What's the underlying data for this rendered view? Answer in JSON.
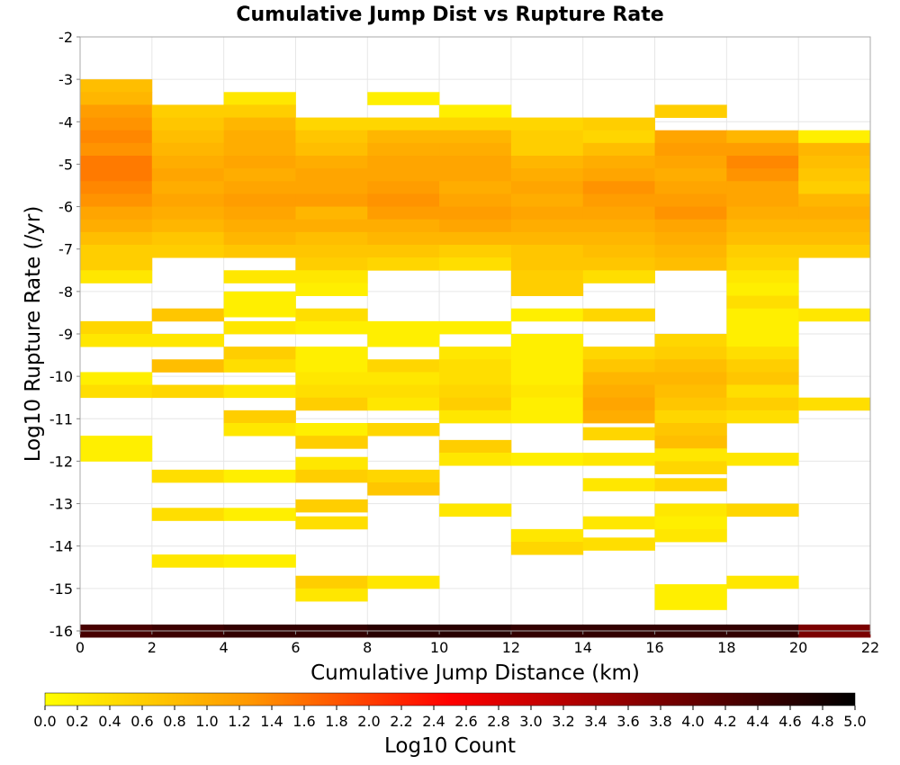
{
  "chart_data": {
    "type": "heatmap",
    "title": "Cumulative Jump Dist vs Rupture Rate",
    "xlabel": "Cumulative Jump Distance (km)",
    "ylabel": "Log10 Rupture Rate (/yr)",
    "xlim": [
      0,
      22
    ],
    "ylim": [
      -16,
      -2
    ],
    "x_ticks": [
      0,
      2,
      4,
      6,
      8,
      10,
      12,
      14,
      16,
      18,
      20,
      22
    ],
    "y_ticks": [
      -2,
      -3,
      -4,
      -5,
      -6,
      -7,
      -8,
      -9,
      -10,
      -11,
      -12,
      -13,
      -14,
      -15,
      -16
    ],
    "x_bin_width": 2,
    "y_bin_height": 0.3,
    "grid": true,
    "colorbar": {
      "label": "Log10 Count",
      "range": [
        0,
        5
      ],
      "ticks": [
        "0.0",
        "0.2",
        "0.4",
        "0.6",
        "0.8",
        "1.0",
        "1.2",
        "1.4",
        "1.6",
        "1.8",
        "2.0",
        "2.2",
        "2.4",
        "2.6",
        "2.8",
        "3.0",
        "3.2",
        "3.4",
        "3.6",
        "3.8",
        "4.0",
        "4.2",
        "4.4",
        "4.6",
        "4.8",
        "5.0"
      ],
      "colors": [
        "#ffff00",
        "#ff9900",
        "#ff0000",
        "#800000",
        "#000000"
      ]
    },
    "columns": [
      {
        "x": 0,
        "cells": [
          [
            -3.15,
            0.8
          ],
          [
            -3.45,
            0.9
          ],
          [
            -3.75,
            1.2
          ],
          [
            -4.05,
            1.3
          ],
          [
            -4.35,
            1.4
          ],
          [
            -4.65,
            1.3
          ],
          [
            -4.95,
            1.5
          ],
          [
            -5.25,
            1.5
          ],
          [
            -5.55,
            1.4
          ],
          [
            -5.85,
            1.3
          ],
          [
            -6.15,
            1.1
          ],
          [
            -6.45,
            1.0
          ],
          [
            -6.75,
            0.8
          ],
          [
            -7.05,
            0.6
          ],
          [
            -7.35,
            0.6
          ],
          [
            -7.65,
            0.3
          ],
          [
            -8.85,
            0.5
          ],
          [
            -9.15,
            0.3
          ],
          [
            -10.05,
            0.2
          ],
          [
            -10.35,
            0.4
          ],
          [
            -11.55,
            0.2
          ],
          [
            -11.85,
            0.2
          ],
          [
            -16.0,
            4.3
          ]
        ]
      },
      {
        "x": 2,
        "cells": [
          [
            -3.75,
            0.6
          ],
          [
            -4.05,
            0.7
          ],
          [
            -4.35,
            0.8
          ],
          [
            -4.65,
            0.9
          ],
          [
            -4.95,
            1.0
          ],
          [
            -5.25,
            1.1
          ],
          [
            -5.55,
            1.0
          ],
          [
            -5.85,
            1.1
          ],
          [
            -6.15,
            1.0
          ],
          [
            -6.45,
            0.9
          ],
          [
            -6.75,
            0.7
          ],
          [
            -7.05,
            0.6
          ],
          [
            -8.55,
            0.7
          ],
          [
            -9.15,
            0.3
          ],
          [
            -9.75,
            0.8
          ],
          [
            -10.35,
            0.5
          ],
          [
            -12.35,
            0.4
          ],
          [
            -13.25,
            0.4
          ],
          [
            -14.35,
            0.3
          ],
          [
            -16.0,
            4.4
          ]
        ]
      },
      {
        "x": 4,
        "cells": [
          [
            -3.45,
            0.3
          ],
          [
            -3.75,
            0.6
          ],
          [
            -4.05,
            0.9
          ],
          [
            -4.35,
            1.0
          ],
          [
            -4.65,
            1.0
          ],
          [
            -4.95,
            1.1
          ],
          [
            -5.25,
            1.0
          ],
          [
            -5.55,
            1.1
          ],
          [
            -5.85,
            1.2
          ],
          [
            -6.15,
            1.1
          ],
          [
            -6.45,
            1.0
          ],
          [
            -6.75,
            0.9
          ],
          [
            -7.05,
            0.7
          ],
          [
            -7.65,
            0.3
          ],
          [
            -8.15,
            0.2
          ],
          [
            -8.45,
            0.2
          ],
          [
            -8.85,
            0.3
          ],
          [
            -9.45,
            0.6
          ],
          [
            -9.75,
            0.4
          ],
          [
            -10.35,
            0.3
          ],
          [
            -10.95,
            0.6
          ],
          [
            -11.25,
            0.3
          ],
          [
            -12.35,
            0.2
          ],
          [
            -13.25,
            0.2
          ],
          [
            -14.35,
            0.2
          ],
          [
            -16.0,
            4.5
          ]
        ]
      },
      {
        "x": 6,
        "cells": [
          [
            -4.05,
            0.5
          ],
          [
            -4.35,
            0.7
          ],
          [
            -4.65,
            0.8
          ],
          [
            -4.95,
            1.0
          ],
          [
            -5.25,
            1.1
          ],
          [
            -5.55,
            1.1
          ],
          [
            -5.85,
            1.2
          ],
          [
            -6.15,
            0.9
          ],
          [
            -6.45,
            1.0
          ],
          [
            -6.75,
            0.8
          ],
          [
            -7.05,
            0.7
          ],
          [
            -7.35,
            0.6
          ],
          [
            -7.65,
            0.3
          ],
          [
            -7.95,
            0.2
          ],
          [
            -8.55,
            0.4
          ],
          [
            -8.85,
            0.2
          ],
          [
            -9.45,
            0.2
          ],
          [
            -9.75,
            0.2
          ],
          [
            -10.05,
            0.3
          ],
          [
            -10.35,
            0.4
          ],
          [
            -10.65,
            0.6
          ],
          [
            -11.25,
            0.2
          ],
          [
            -11.55,
            0.6
          ],
          [
            -12.05,
            0.3
          ],
          [
            -12.35,
            0.6
          ],
          [
            -13.05,
            0.6
          ],
          [
            -13.45,
            0.4
          ],
          [
            -14.85,
            0.6
          ],
          [
            -15.15,
            0.3
          ],
          [
            -16.0,
            4.5
          ]
        ]
      },
      {
        "x": 8,
        "cells": [
          [
            -3.45,
            0.2
          ],
          [
            -4.05,
            0.5
          ],
          [
            -4.35,
            0.9
          ],
          [
            -4.65,
            1.0
          ],
          [
            -4.95,
            1.1
          ],
          [
            -5.25,
            1.1
          ],
          [
            -5.55,
            1.2
          ],
          [
            -5.85,
            1.3
          ],
          [
            -6.15,
            1.2
          ],
          [
            -6.45,
            1.0
          ],
          [
            -6.75,
            0.9
          ],
          [
            -7.05,
            0.7
          ],
          [
            -7.35,
            0.5
          ],
          [
            -8.85,
            0.2
          ],
          [
            -9.15,
            0.2
          ],
          [
            -9.75,
            0.5
          ],
          [
            -10.05,
            0.3
          ],
          [
            -10.35,
            0.4
          ],
          [
            -10.65,
            0.3
          ],
          [
            -11.25,
            0.5
          ],
          [
            -12.35,
            0.5
          ],
          [
            -12.65,
            0.7
          ],
          [
            -14.85,
            0.3
          ],
          [
            -16.0,
            4.6
          ]
        ]
      },
      {
        "x": 10,
        "cells": [
          [
            -3.75,
            0.2
          ],
          [
            -4.05,
            0.5
          ],
          [
            -4.35,
            0.9
          ],
          [
            -4.65,
            1.0
          ],
          [
            -4.95,
            1.1
          ],
          [
            -5.25,
            1.1
          ],
          [
            -5.55,
            1.0
          ],
          [
            -5.85,
            1.1
          ],
          [
            -6.15,
            1.2
          ],
          [
            -6.45,
            1.1
          ],
          [
            -6.75,
            0.9
          ],
          [
            -7.05,
            0.6
          ],
          [
            -7.35,
            0.4
          ],
          [
            -8.85,
            0.2
          ],
          [
            -9.45,
            0.3
          ],
          [
            -9.75,
            0.4
          ],
          [
            -10.05,
            0.4
          ],
          [
            -10.35,
            0.5
          ],
          [
            -10.65,
            0.6
          ],
          [
            -10.95,
            0.3
          ],
          [
            -11.65,
            0.6
          ],
          [
            -11.95,
            0.3
          ],
          [
            -13.15,
            0.3
          ],
          [
            -16.0,
            4.6
          ]
        ]
      },
      {
        "x": 12,
        "cells": [
          [
            -4.05,
            0.5
          ],
          [
            -4.35,
            0.6
          ],
          [
            -4.65,
            0.6
          ],
          [
            -4.95,
            0.9
          ],
          [
            -5.25,
            1.0
          ],
          [
            -5.55,
            1.1
          ],
          [
            -5.85,
            1.0
          ],
          [
            -6.15,
            1.1
          ],
          [
            -6.45,
            1.0
          ],
          [
            -6.75,
            0.9
          ],
          [
            -7.05,
            0.7
          ],
          [
            -7.35,
            0.7
          ],
          [
            -7.65,
            0.6
          ],
          [
            -7.95,
            0.6
          ],
          [
            -8.55,
            0.2
          ],
          [
            -9.15,
            0.2
          ],
          [
            -9.45,
            0.2
          ],
          [
            -9.75,
            0.2
          ],
          [
            -10.05,
            0.2
          ],
          [
            -10.35,
            0.3
          ],
          [
            -10.65,
            0.2
          ],
          [
            -10.95,
            0.2
          ],
          [
            -11.95,
            0.2
          ],
          [
            -13.75,
            0.3
          ],
          [
            -14.05,
            0.5
          ],
          [
            -16.0,
            4.5
          ]
        ]
      },
      {
        "x": 14,
        "cells": [
          [
            -4.05,
            0.6
          ],
          [
            -4.35,
            0.5
          ],
          [
            -4.65,
            0.8
          ],
          [
            -4.95,
            1.0
          ],
          [
            -5.25,
            1.1
          ],
          [
            -5.55,
            1.3
          ],
          [
            -5.85,
            1.2
          ],
          [
            -6.15,
            1.1
          ],
          [
            -6.45,
            1.0
          ],
          [
            -6.75,
            0.9
          ],
          [
            -7.05,
            0.8
          ],
          [
            -7.35,
            0.7
          ],
          [
            -7.65,
            0.4
          ],
          [
            -8.55,
            0.5
          ],
          [
            -9.45,
            0.5
          ],
          [
            -9.75,
            0.7
          ],
          [
            -10.05,
            0.9
          ],
          [
            -10.35,
            1.0
          ],
          [
            -10.65,
            1.1
          ],
          [
            -10.95,
            1.0
          ],
          [
            -11.35,
            0.5
          ],
          [
            -11.95,
            0.3
          ],
          [
            -12.55,
            0.3
          ],
          [
            -13.45,
            0.3
          ],
          [
            -13.95,
            0.4
          ],
          [
            -16.0,
            4.5
          ]
        ]
      },
      {
        "x": 16,
        "cells": [
          [
            -3.75,
            0.6
          ],
          [
            -4.35,
            1.1
          ],
          [
            -4.65,
            1.2
          ],
          [
            -4.95,
            1.1
          ],
          [
            -5.25,
            1.0
          ],
          [
            -5.55,
            1.1
          ],
          [
            -5.85,
            1.2
          ],
          [
            -6.15,
            1.3
          ],
          [
            -6.45,
            1.1
          ],
          [
            -6.75,
            1.0
          ],
          [
            -7.05,
            0.9
          ],
          [
            -7.35,
            0.8
          ],
          [
            -9.15,
            0.5
          ],
          [
            -9.45,
            0.6
          ],
          [
            -9.75,
            0.8
          ],
          [
            -10.05,
            0.9
          ],
          [
            -10.35,
            0.8
          ],
          [
            -10.65,
            0.7
          ],
          [
            -10.95,
            0.5
          ],
          [
            -11.25,
            0.7
          ],
          [
            -11.55,
            0.8
          ],
          [
            -11.85,
            0.3
          ],
          [
            -12.15,
            0.5
          ],
          [
            -12.55,
            0.5
          ],
          [
            -13.15,
            0.3
          ],
          [
            -13.45,
            0.2
          ],
          [
            -13.75,
            0.3
          ],
          [
            -15.05,
            0.2
          ],
          [
            -15.35,
            0.2
          ],
          [
            -16.0,
            4.5
          ]
        ]
      },
      {
        "x": 18,
        "cells": [
          [
            -4.35,
            0.9
          ],
          [
            -4.65,
            1.2
          ],
          [
            -4.95,
            1.4
          ],
          [
            -5.25,
            1.3
          ],
          [
            -5.55,
            1.1
          ],
          [
            -5.85,
            1.1
          ],
          [
            -6.15,
            1.0
          ],
          [
            -6.45,
            0.9
          ],
          [
            -6.75,
            0.8
          ],
          [
            -7.05,
            0.6
          ],
          [
            -7.35,
            0.5
          ],
          [
            -7.65,
            0.3
          ],
          [
            -7.95,
            0.2
          ],
          [
            -8.25,
            0.4
          ],
          [
            -8.55,
            0.2
          ],
          [
            -8.85,
            0.2
          ],
          [
            -9.15,
            0.2
          ],
          [
            -9.45,
            0.4
          ],
          [
            -9.75,
            0.6
          ],
          [
            -10.05,
            0.7
          ],
          [
            -10.35,
            0.4
          ],
          [
            -10.65,
            0.6
          ],
          [
            -10.95,
            0.4
          ],
          [
            -11.95,
            0.3
          ],
          [
            -13.15,
            0.5
          ],
          [
            -14.85,
            0.3
          ],
          [
            -16.0,
            4.5
          ]
        ]
      },
      {
        "x": 20,
        "cells": [
          [
            -4.35,
            0.2
          ],
          [
            -4.65,
            0.9
          ],
          [
            -4.95,
            0.8
          ],
          [
            -5.25,
            0.7
          ],
          [
            -5.55,
            0.6
          ],
          [
            -5.85,
            0.9
          ],
          [
            -6.15,
            1.0
          ],
          [
            -6.45,
            0.9
          ],
          [
            -6.75,
            0.8
          ],
          [
            -7.05,
            0.6
          ],
          [
            -8.55,
            0.3
          ],
          [
            -10.65,
            0.4
          ],
          [
            -16.0,
            3.8
          ]
        ]
      }
    ]
  }
}
